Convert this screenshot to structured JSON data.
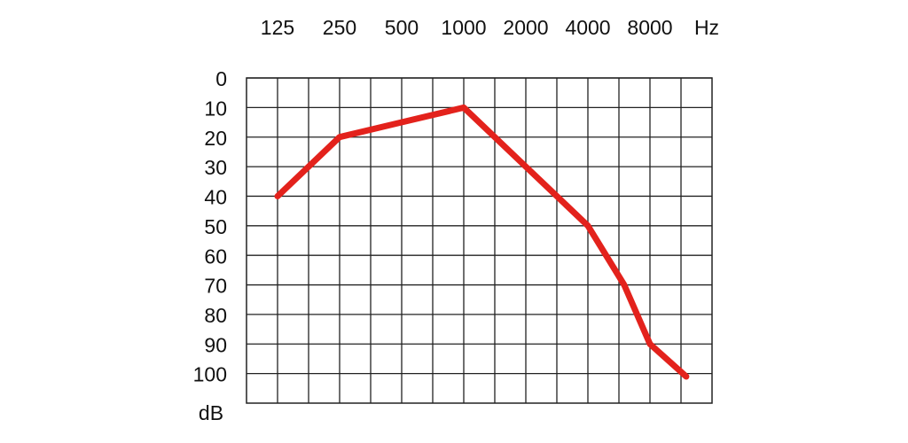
{
  "chart_data": {
    "type": "line",
    "x_unit": "Hz",
    "y_unit": "dB",
    "xscale": "log",
    "yinverted": true,
    "xlim": [
      88.39,
      16000
    ],
    "ylim": [
      0,
      110
    ],
    "xticks": [
      125,
      250,
      500,
      1000,
      2000,
      4000,
      8000
    ],
    "x_minor_ticks": [
      176.8,
      353.6,
      707.1,
      1414,
      2828,
      5657,
      11314
    ],
    "yticks": [
      0,
      10,
      20,
      30,
      40,
      50,
      60,
      70,
      80,
      90,
      100
    ],
    "grid": true,
    "series": [
      {
        "color": "#e3221c",
        "x": [
          125,
          250,
          500,
          1000,
          2000,
          4000,
          6000,
          8000,
          12000
        ],
        "values": [
          40,
          20,
          15,
          10,
          30,
          50,
          70,
          90,
          101
        ]
      }
    ]
  }
}
